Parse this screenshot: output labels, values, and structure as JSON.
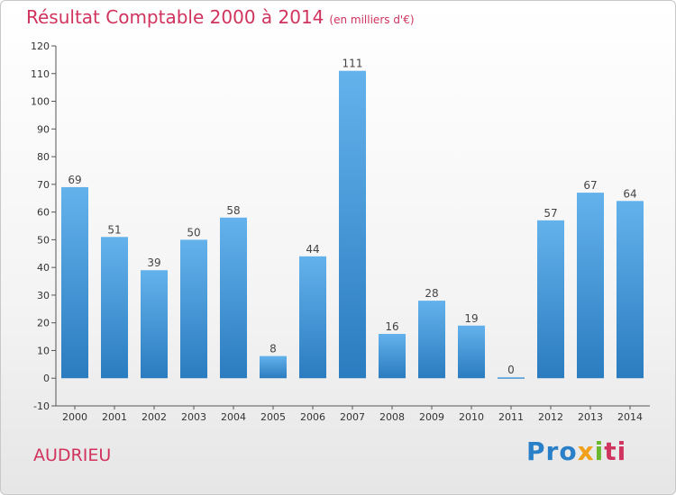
{
  "header": {
    "title": "Résultat Comptable 2000 à 2014",
    "subtitle": "(en milliers d'€)"
  },
  "footer": {
    "city": "AUDRIEU",
    "logo": [
      "Pro",
      "x",
      "i",
      "ti"
    ]
  },
  "colors": {
    "title": "#d0335d",
    "bar_light": "#64b2ec",
    "bar_dark": "#2a7cc0"
  },
  "chart_data": {
    "type": "bar",
    "title": "Résultat Comptable 2000 à 2014",
    "subtitle": "(en milliers d'€)",
    "xlabel": "",
    "ylabel": "",
    "categories": [
      "2000",
      "2001",
      "2002",
      "2003",
      "2004",
      "2005",
      "2006",
      "2007",
      "2008",
      "2009",
      "2010",
      "2011",
      "2012",
      "2013",
      "2014"
    ],
    "values": [
      69,
      51,
      39,
      50,
      58,
      8,
      44,
      111,
      16,
      28,
      19,
      0,
      57,
      67,
      64
    ],
    "ylim": [
      -10,
      120
    ],
    "yticks": [
      -10,
      0,
      10,
      20,
      30,
      40,
      50,
      60,
      70,
      80,
      90,
      100,
      110,
      120
    ],
    "grid": false,
    "legend": "none"
  }
}
